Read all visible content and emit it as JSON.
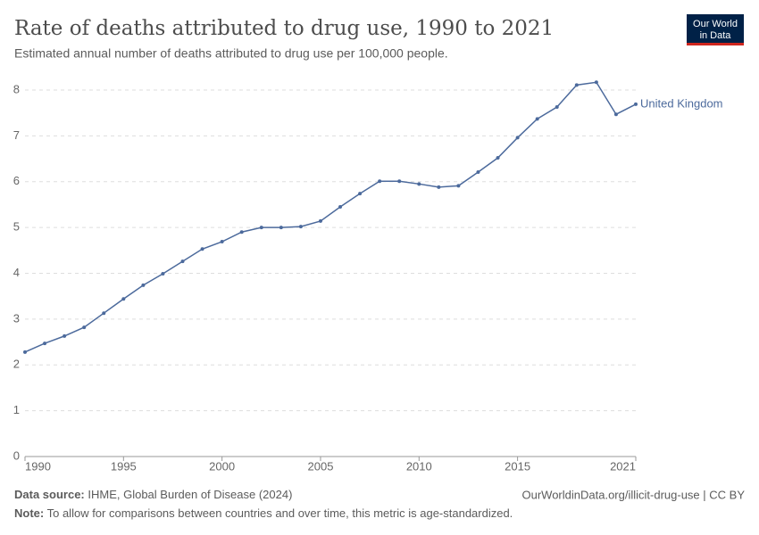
{
  "chart_data": {
    "type": "line",
    "title": "Rate of deaths attributed to drug use, 1990 to 2021",
    "subtitle": "Estimated annual number of deaths attributed to drug use per 100,000 people.",
    "source_label": "Data source:",
    "source": "IHME, Global Burden of Disease (2024)",
    "note_label": "Note:",
    "note": "To allow for comparisons between countries and over time, this metric is age-standardized.",
    "url": "OurWorldinData.org/illicit-drug-use | CC BY",
    "logo": [
      "Our World",
      "in Data"
    ],
    "x": [
      1990,
      1991,
      1992,
      1993,
      1994,
      1995,
      1996,
      1997,
      1998,
      1999,
      2000,
      2001,
      2002,
      2003,
      2004,
      2005,
      2006,
      2007,
      2008,
      2009,
      2010,
      2011,
      2012,
      2013,
      2014,
      2015,
      2016,
      2017,
      2018,
      2019,
      2020,
      2021
    ],
    "series": [
      {
        "name": "United Kingdom",
        "color": "#4c6a9c",
        "values": [
          2.28,
          2.47,
          2.63,
          2.82,
          3.13,
          3.44,
          3.74,
          3.99,
          4.26,
          4.53,
          4.69,
          4.9,
          5.0,
          5.0,
          5.02,
          5.14,
          5.45,
          5.74,
          6.01,
          6.01,
          5.95,
          5.88,
          5.91,
          6.21,
          6.52,
          6.96,
          7.37,
          7.63,
          8.11,
          8.17,
          7.47,
          7.69
        ]
      }
    ],
    "xlim": [
      1990,
      2021
    ],
    "xticks": [
      1990,
      1995,
      2000,
      2005,
      2010,
      2015,
      2021
    ],
    "ylim": [
      0,
      8
    ],
    "yticks": [
      0,
      1,
      2,
      3,
      4,
      5,
      6,
      7,
      8
    ],
    "grid": true
  }
}
